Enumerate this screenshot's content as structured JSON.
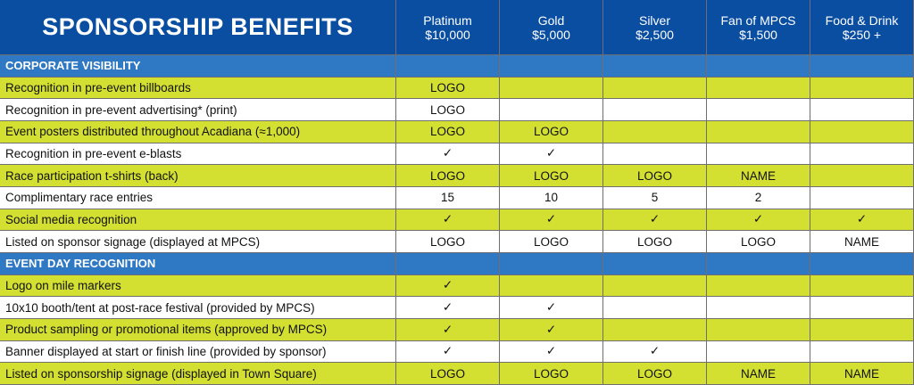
{
  "header": {
    "title": "SPONSORSHIP BENEFITS",
    "tiers": [
      {
        "name": "Platinum",
        "price": "$10,000"
      },
      {
        "name": "Gold",
        "price": "$5,000"
      },
      {
        "name": "Silver",
        "price": "$2,500"
      },
      {
        "name": "Fan of MPCS",
        "price": "$1,500"
      },
      {
        "name": "Food & Drink",
        "price": "$250 +"
      }
    ]
  },
  "sections": [
    {
      "title": "CORPORATE VISIBILITY",
      "rows": [
        {
          "label": "Recognition in pre-event billboards",
          "values": [
            "LOGO",
            "",
            "",
            "",
            ""
          ]
        },
        {
          "label": "Recognition in pre-event advertising* (print)",
          "values": [
            "LOGO",
            "",
            "",
            "",
            ""
          ]
        },
        {
          "label": "Event posters distributed throughout Acadiana (≈1,000)",
          "values": [
            "LOGO",
            "LOGO",
            "",
            "",
            ""
          ]
        },
        {
          "label": "Recognition in pre-event e-blasts",
          "values": [
            "✓",
            "✓",
            "",
            "",
            ""
          ]
        },
        {
          "label": "Race participation t-shirts (back)",
          "values": [
            "LOGO",
            "LOGO",
            "LOGO",
            "NAME",
            ""
          ]
        },
        {
          "label": "Complimentary race entries",
          "values": [
            "15",
            "10",
            "5",
            "2",
            ""
          ]
        },
        {
          "label": "Social media recognition",
          "values": [
            "✓",
            "✓",
            "✓",
            "✓",
            "✓"
          ]
        },
        {
          "label": "Listed on sponsor signage (displayed at MPCS)",
          "values": [
            "LOGO",
            "LOGO",
            "LOGO",
            "LOGO",
            "NAME"
          ]
        }
      ]
    },
    {
      "title": "EVENT DAY RECOGNITION",
      "rows": [
        {
          "label": "Logo on mile markers",
          "values": [
            "✓",
            "",
            "",
            "",
            ""
          ]
        },
        {
          "label": "10x10 booth/tent at post-race festival (provided by MPCS)",
          "values": [
            "✓",
            "✓",
            "",
            "",
            ""
          ]
        },
        {
          "label": "Product sampling or promotional items (approved by MPCS)",
          "values": [
            "✓",
            "✓",
            "",
            "",
            ""
          ]
        },
        {
          "label": "Banner displayed at start or finish line (provided by sponsor)",
          "values": [
            "✓",
            "✓",
            "✓",
            "",
            ""
          ]
        },
        {
          "label": "Listed on sponsorship signage (displayed in Town Square)",
          "values": [
            "LOGO",
            "LOGO",
            "LOGO",
            "NAME",
            "NAME"
          ]
        }
      ]
    }
  ]
}
